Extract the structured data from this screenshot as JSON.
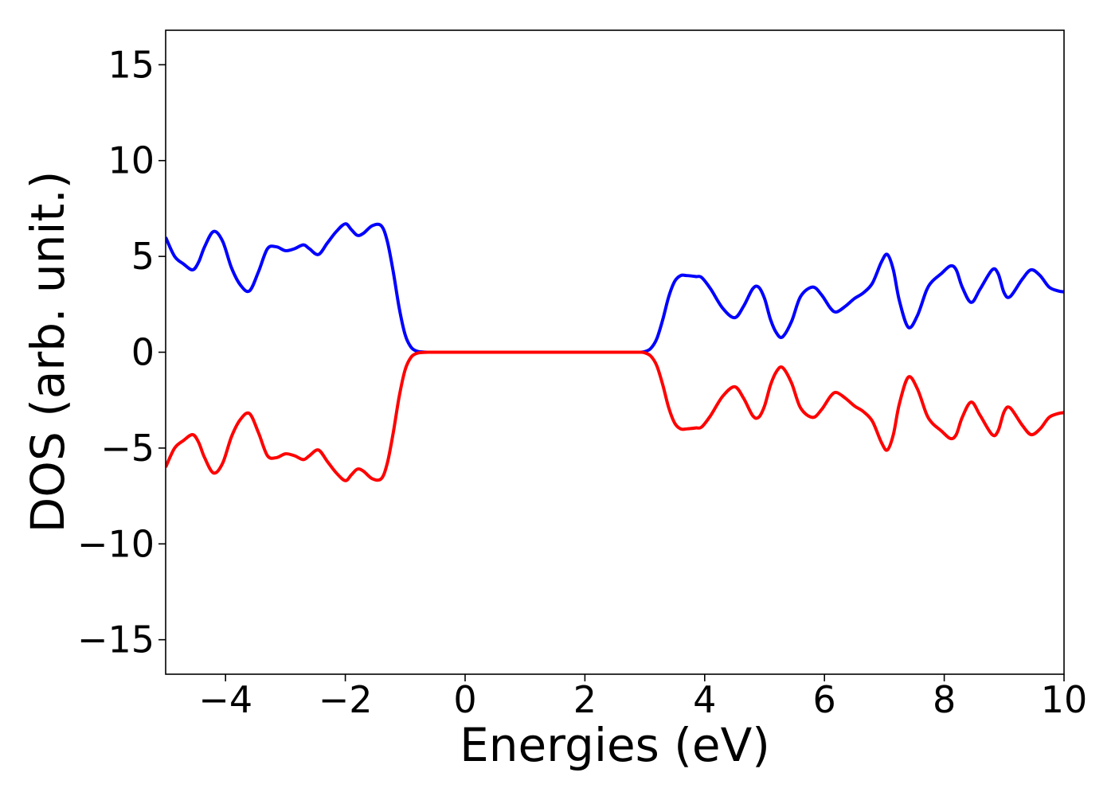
{
  "chart_data": {
    "type": "line",
    "title": "",
    "xlabel": "Energies (eV)",
    "ylabel": "DOS (arb. unit.)",
    "xlim": [
      -5,
      10
    ],
    "ylim": [
      -16.8,
      16.8
    ],
    "xticks": [
      -4,
      -2,
      0,
      2,
      4,
      6,
      8,
      10
    ],
    "yticks": [
      -15,
      -10,
      -5,
      0,
      5,
      10,
      15
    ],
    "xtick_labels": [
      "−4",
      "−2",
      "0",
      "2",
      "4",
      "6",
      "8",
      "10"
    ],
    "ytick_labels": [
      "−15",
      "−10",
      "−5",
      "0",
      "5",
      "10",
      "15"
    ],
    "grid": false,
    "legend": "none",
    "series": [
      {
        "color": "#0000ff",
        "x": [
          -5.0,
          -4.85,
          -4.7,
          -4.55,
          -4.45,
          -4.35,
          -4.2,
          -4.05,
          -3.9,
          -3.75,
          -3.6,
          -3.45,
          -3.3,
          -3.15,
          -3.0,
          -2.85,
          -2.7,
          -2.6,
          -2.45,
          -2.3,
          -2.15,
          -2.0,
          -1.9,
          -1.8,
          -1.7,
          -1.55,
          -1.4,
          -1.3,
          -1.2,
          -1.1,
          -1.0,
          -0.9,
          -0.8,
          -0.7,
          -0.6,
          -0.4,
          0.0,
          1.0,
          2.0,
          2.6,
          2.9,
          3.0,
          3.1,
          3.2,
          3.3,
          3.4,
          3.5,
          3.6,
          3.7,
          3.85,
          3.95,
          4.1,
          4.3,
          4.5,
          4.65,
          4.8,
          4.9,
          5.0,
          5.1,
          5.2,
          5.3,
          5.45,
          5.6,
          5.8,
          5.95,
          6.1,
          6.2,
          6.35,
          6.5,
          6.65,
          6.8,
          6.95,
          7.05,
          7.15,
          7.25,
          7.4,
          7.55,
          7.7,
          7.8,
          7.95,
          8.1,
          8.2,
          8.3,
          8.45,
          8.6,
          8.8,
          8.9,
          9.0,
          9.1,
          9.3,
          9.45,
          9.6,
          9.75,
          9.9,
          10.0
        ],
        "y": [
          6.0,
          5.0,
          4.6,
          4.3,
          4.7,
          5.5,
          6.3,
          5.8,
          4.4,
          3.5,
          3.2,
          4.2,
          5.4,
          5.5,
          5.3,
          5.4,
          5.6,
          5.4,
          5.1,
          5.7,
          6.3,
          6.7,
          6.4,
          6.1,
          6.2,
          6.6,
          6.6,
          5.8,
          4.2,
          2.3,
          0.9,
          0.25,
          0.05,
          0.01,
          0.0,
          0.0,
          0.0,
          0.0,
          0.0,
          0.0,
          0.0,
          0.03,
          0.2,
          0.7,
          1.7,
          2.9,
          3.7,
          4.0,
          4.0,
          3.95,
          3.9,
          3.3,
          2.3,
          1.8,
          2.4,
          3.3,
          3.4,
          2.8,
          1.7,
          1.0,
          0.8,
          1.6,
          2.9,
          3.4,
          3.0,
          2.3,
          2.1,
          2.4,
          2.8,
          3.1,
          3.6,
          4.7,
          5.1,
          4.3,
          2.7,
          1.3,
          1.9,
          3.2,
          3.7,
          4.1,
          4.5,
          4.3,
          3.4,
          2.6,
          3.3,
          4.3,
          4.1,
          3.1,
          2.9,
          3.8,
          4.3,
          4.0,
          3.4,
          3.2,
          3.15
        ]
      },
      {
        "color": "#ff0000",
        "x": [
          -5.0,
          -4.85,
          -4.7,
          -4.55,
          -4.45,
          -4.35,
          -4.2,
          -4.05,
          -3.9,
          -3.75,
          -3.6,
          -3.45,
          -3.3,
          -3.15,
          -3.0,
          -2.85,
          -2.7,
          -2.6,
          -2.45,
          -2.3,
          -2.15,
          -2.0,
          -1.9,
          -1.8,
          -1.7,
          -1.55,
          -1.4,
          -1.3,
          -1.2,
          -1.1,
          -1.0,
          -0.9,
          -0.8,
          -0.7,
          -0.6,
          -0.4,
          0.0,
          1.0,
          2.0,
          2.6,
          2.9,
          3.0,
          3.1,
          3.2,
          3.3,
          3.4,
          3.5,
          3.6,
          3.7,
          3.85,
          3.95,
          4.1,
          4.3,
          4.5,
          4.65,
          4.8,
          4.9,
          5.0,
          5.1,
          5.2,
          5.3,
          5.45,
          5.6,
          5.8,
          5.95,
          6.1,
          6.2,
          6.35,
          6.5,
          6.65,
          6.8,
          6.95,
          7.05,
          7.15,
          7.25,
          7.4,
          7.55,
          7.7,
          7.8,
          7.95,
          8.1,
          8.2,
          8.3,
          8.45,
          8.6,
          8.8,
          8.9,
          9.0,
          9.1,
          9.3,
          9.45,
          9.6,
          9.75,
          9.9,
          10.0
        ],
        "y": [
          -6.0,
          -5.0,
          -4.6,
          -4.3,
          -4.7,
          -5.5,
          -6.3,
          -5.8,
          -4.4,
          -3.5,
          -3.2,
          -4.2,
          -5.4,
          -5.5,
          -5.3,
          -5.4,
          -5.6,
          -5.4,
          -5.1,
          -5.7,
          -6.3,
          -6.7,
          -6.4,
          -6.1,
          -6.2,
          -6.6,
          -6.6,
          -5.8,
          -4.2,
          -2.3,
          -0.9,
          -0.25,
          -0.05,
          -0.01,
          0.0,
          0.0,
          0.0,
          0.0,
          0.0,
          0.0,
          0.0,
          -0.03,
          -0.2,
          -0.7,
          -1.7,
          -2.9,
          -3.7,
          -4.0,
          -4.0,
          -3.95,
          -3.9,
          -3.3,
          -2.3,
          -1.8,
          -2.4,
          -3.3,
          -3.4,
          -2.8,
          -1.7,
          -1.0,
          -0.8,
          -1.6,
          -2.9,
          -3.4,
          -3.0,
          -2.3,
          -2.1,
          -2.4,
          -2.8,
          -3.1,
          -3.6,
          -4.7,
          -5.1,
          -4.3,
          -2.7,
          -1.3,
          -1.9,
          -3.2,
          -3.7,
          -4.1,
          -4.5,
          -4.3,
          -3.4,
          -2.6,
          -3.3,
          -4.3,
          -4.1,
          -3.1,
          -2.9,
          -3.8,
          -4.3,
          -4.0,
          -3.4,
          -3.2,
          -3.15
        ]
      }
    ]
  }
}
